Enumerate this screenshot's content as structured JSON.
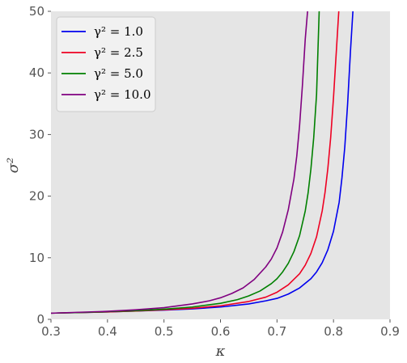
{
  "chart_data": {
    "type": "line",
    "xlabel": "κ",
    "ylabel": "σ²",
    "xlim": [
      0.3,
      0.9
    ],
    "ylim": [
      0,
      50
    ],
    "xticks": [
      "0.3",
      "0.4",
      "0.5",
      "0.6",
      "0.7",
      "0.8",
      "0.9"
    ],
    "yticks": [
      "0",
      "10",
      "20",
      "30",
      "40",
      "50"
    ],
    "grid": false,
    "legend_position": "top-left",
    "background_color": "#e5e5e5",
    "series": [
      {
        "name": "γ² = 1.0",
        "color": "#0000ee",
        "x": [
          0.3,
          0.35,
          0.4,
          0.45,
          0.5,
          0.55,
          0.6,
          0.65,
          0.68,
          0.7,
          0.72,
          0.74,
          0.76,
          0.77,
          0.78,
          0.79,
          0.8,
          0.81,
          0.815,
          0.82,
          0.825,
          0.83,
          0.835
        ],
        "y": [
          1.0,
          1.1,
          1.2,
          1.35,
          1.5,
          1.7,
          2.0,
          2.5,
          3.0,
          3.4,
          4.1,
          5.1,
          6.6,
          7.7,
          9.2,
          11.3,
          14.3,
          19.0,
          23.0,
          28.0,
          35.0,
          43.5,
          51.0
        ]
      },
      {
        "name": "γ² = 2.5",
        "color": "#ee0022",
        "x": [
          0.3,
          0.35,
          0.4,
          0.45,
          0.5,
          0.55,
          0.6,
          0.65,
          0.68,
          0.7,
          0.72,
          0.74,
          0.75,
          0.76,
          0.77,
          0.78,
          0.785,
          0.79,
          0.795,
          0.8,
          0.805,
          0.81
        ],
        "y": [
          1.0,
          1.1,
          1.2,
          1.35,
          1.55,
          1.8,
          2.2,
          2.9,
          3.6,
          4.4,
          5.6,
          7.4,
          8.8,
          10.7,
          13.4,
          17.6,
          20.6,
          24.5,
          29.5,
          36.0,
          43.5,
          51.0
        ]
      },
      {
        "name": "γ² = 5.0",
        "color": "#008000",
        "x": [
          0.3,
          0.35,
          0.4,
          0.45,
          0.5,
          0.55,
          0.6,
          0.63,
          0.65,
          0.67,
          0.69,
          0.7,
          0.71,
          0.72,
          0.73,
          0.74,
          0.75,
          0.755,
          0.76,
          0.765,
          0.77,
          0.775
        ],
        "y": [
          1.0,
          1.1,
          1.25,
          1.4,
          1.65,
          2.0,
          2.6,
          3.2,
          3.8,
          4.6,
          5.8,
          6.6,
          7.7,
          9.1,
          11.0,
          13.6,
          17.6,
          20.5,
          24.4,
          29.5,
          36.5,
          51.0
        ]
      },
      {
        "name": "γ² = 10.0",
        "color": "#800080",
        "x": [
          0.3,
          0.35,
          0.4,
          0.45,
          0.5,
          0.55,
          0.58,
          0.6,
          0.62,
          0.64,
          0.66,
          0.68,
          0.69,
          0.7,
          0.71,
          0.72,
          0.73,
          0.735,
          0.74,
          0.745,
          0.75,
          0.755
        ],
        "y": [
          1.0,
          1.15,
          1.3,
          1.55,
          1.9,
          2.5,
          3.0,
          3.5,
          4.2,
          5.1,
          6.5,
          8.5,
          9.8,
          11.6,
          14.2,
          17.8,
          22.8,
          26.5,
          31.5,
          38.0,
          45.5,
          51.0
        ]
      }
    ]
  }
}
